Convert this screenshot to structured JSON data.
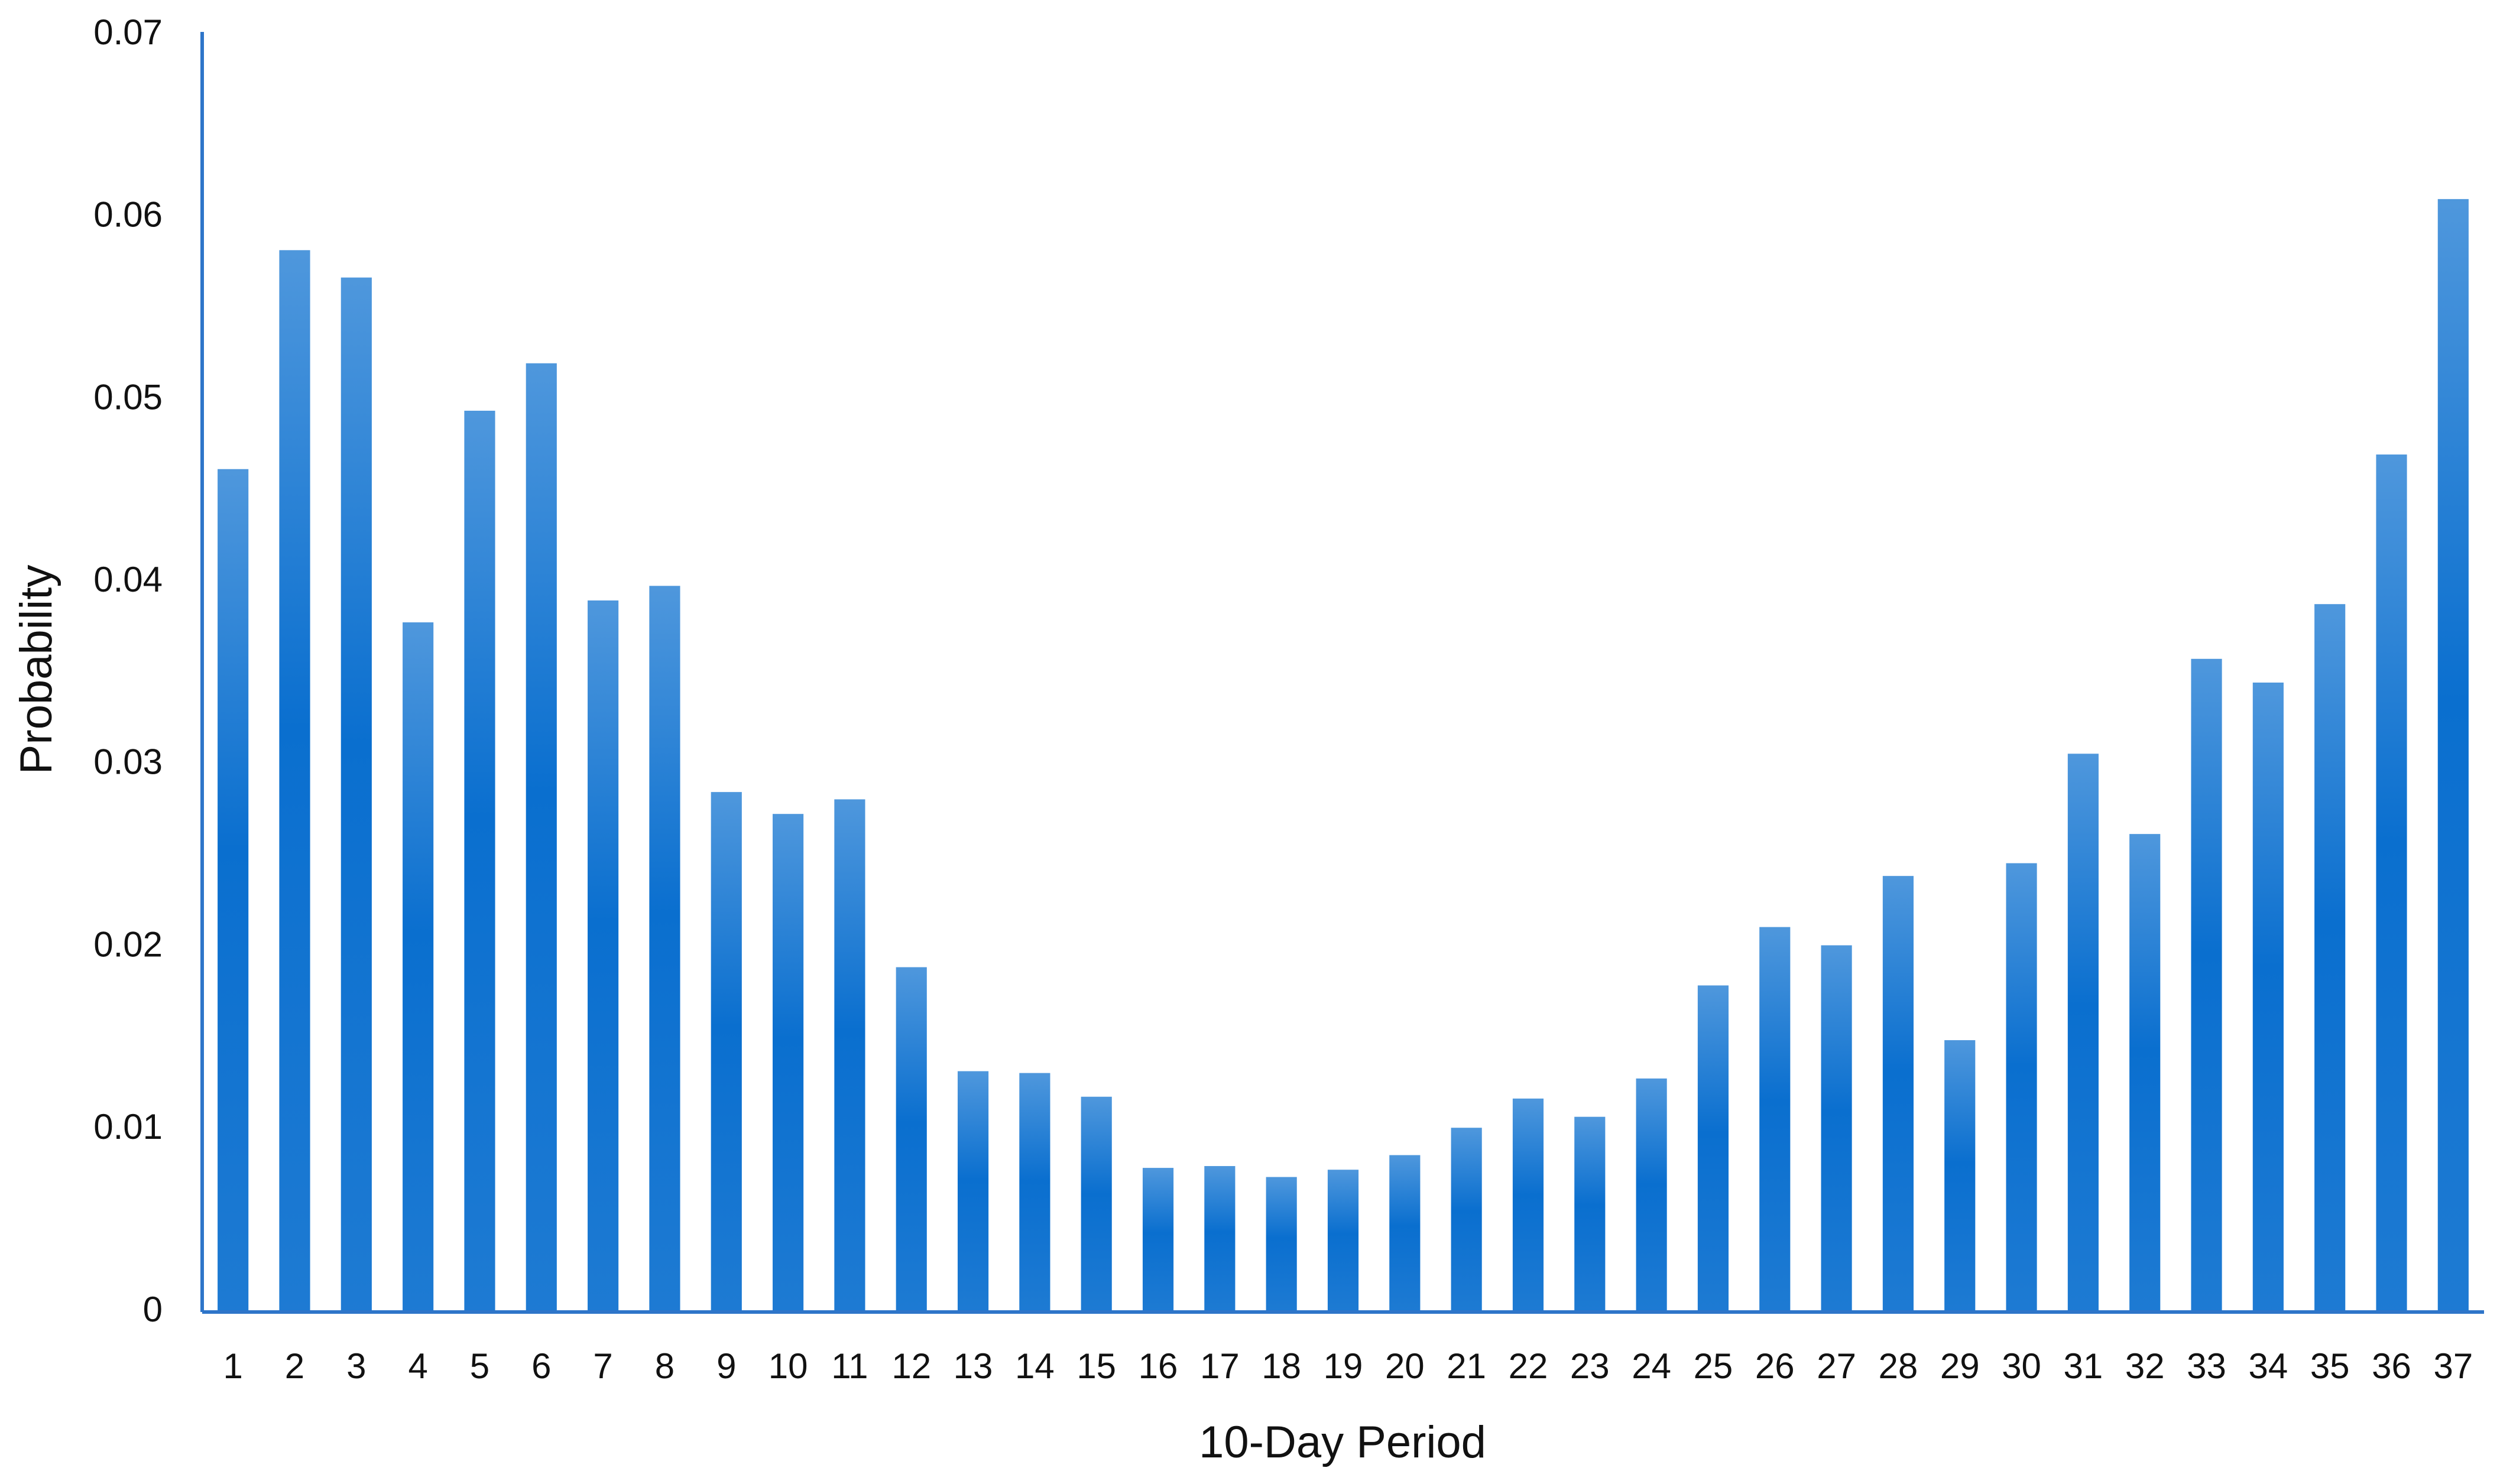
{
  "chart_data": {
    "type": "bar",
    "x_label": "10-Day Period",
    "y_label": "Probability",
    "categories": [
      "1",
      "2",
      "3",
      "4",
      "5",
      "6",
      "7",
      "8",
      "9",
      "10",
      "11",
      "12",
      "13",
      "14",
      "15",
      "16",
      "17",
      "18",
      "19",
      "20",
      "21",
      "22",
      "23",
      "24",
      "25",
      "26",
      "27",
      "28",
      "29",
      "30",
      "31",
      "32",
      "33",
      "34",
      "35",
      "36",
      "37"
    ],
    "values": [
      0.0462,
      0.0582,
      0.0567,
      0.0378,
      0.0494,
      0.052,
      0.039,
      0.0398,
      0.0285,
      0.0273,
      0.0281,
      0.0189,
      0.0132,
      0.0131,
      0.0118,
      0.0079,
      0.008,
      0.0074,
      0.0078,
      0.0086,
      0.0101,
      0.0117,
      0.0107,
      0.0128,
      0.0179,
      0.0211,
      0.0201,
      0.0239,
      0.0149,
      0.0246,
      0.0306,
      0.0262,
      0.0358,
      0.0345,
      0.0388,
      0.047,
      0.061
    ],
    "color": "#0a6fcf",
    "ylim": [
      0,
      0.07
    ],
    "yticks": [
      0,
      0.01,
      0.02,
      0.03,
      0.04,
      0.05,
      0.06,
      0.07
    ],
    "grid": false
  }
}
